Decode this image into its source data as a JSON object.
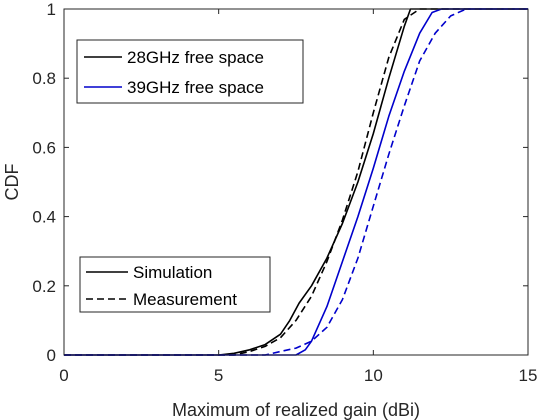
{
  "chart_data": {
    "type": "line",
    "xlabel": "Maximum of realized gain (dBi)",
    "ylabel": "CDF",
    "xlim": [
      0,
      15
    ],
    "ylim": [
      0,
      1
    ],
    "xticks": [
      "0",
      "5",
      "10",
      "15"
    ],
    "yticks": [
      "0",
      "0.2",
      "0.4",
      "0.6",
      "0.8",
      "1"
    ],
    "grid": false,
    "legend_color": {
      "placement": "top-left",
      "entries": [
        {
          "label": "28GHz free space",
          "color": "#000000"
        },
        {
          "label": "39GHz free space",
          "color": "#0000cc"
        }
      ]
    },
    "legend_style": {
      "placement": "bottom-left",
      "entries": [
        {
          "label": "Simulation",
          "dash": "solid"
        },
        {
          "label": "Measurement",
          "dash": "dashed"
        }
      ]
    },
    "series": [
      {
        "frequency": "28GHz",
        "method": "Simulation",
        "color": "#000000",
        "dash": "solid",
        "x": [
          0,
          5,
          5.5,
          6,
          6.5,
          7,
          7.3,
          7.6,
          8,
          8.5,
          9,
          9.5,
          10,
          10.5,
          11,
          11.2,
          11.5,
          15
        ],
        "y": [
          0,
          0,
          0.005,
          0.015,
          0.03,
          0.06,
          0.1,
          0.15,
          0.2,
          0.28,
          0.38,
          0.5,
          0.64,
          0.8,
          0.95,
          1.0,
          1.0,
          1.0
        ]
      },
      {
        "frequency": "28GHz",
        "method": "Measurement",
        "color": "#000000",
        "dash": "dashed",
        "x": [
          0,
          5.5,
          6,
          6.5,
          7,
          7.5,
          8,
          8.5,
          9,
          9.5,
          10,
          10.5,
          11,
          11.5,
          15
        ],
        "y": [
          0,
          0,
          0.01,
          0.025,
          0.05,
          0.1,
          0.17,
          0.27,
          0.39,
          0.53,
          0.7,
          0.86,
          0.97,
          1.0,
          1.0
        ]
      },
      {
        "frequency": "39GHz",
        "method": "Simulation",
        "color": "#0000cc",
        "dash": "solid",
        "x": [
          0,
          7.5,
          7.8,
          8,
          8.5,
          9,
          9.5,
          10,
          10.5,
          11,
          11.5,
          11.9,
          12.2,
          15
        ],
        "y": [
          0,
          0,
          0.015,
          0.04,
          0.14,
          0.27,
          0.4,
          0.54,
          0.69,
          0.82,
          0.93,
          0.99,
          1.0,
          1.0
        ]
      },
      {
        "frequency": "39GHz",
        "method": "Measurement",
        "color": "#0000cc",
        "dash": "dashed",
        "x": [
          0,
          6.5,
          7,
          7.5,
          8,
          8.5,
          9,
          9.5,
          10,
          10.5,
          11,
          11.5,
          12,
          12.5,
          13,
          15
        ],
        "y": [
          0,
          0,
          0.01,
          0.02,
          0.04,
          0.08,
          0.16,
          0.28,
          0.43,
          0.58,
          0.72,
          0.85,
          0.93,
          0.98,
          1.0,
          1.0
        ]
      }
    ]
  }
}
